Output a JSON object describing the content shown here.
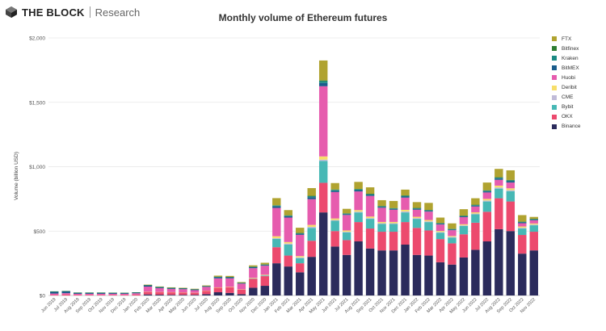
{
  "brand": {
    "name": "THE BLOCK",
    "sub": "Research"
  },
  "chart_data": {
    "type": "bar",
    "stacked": true,
    "title": "Monthly volume of Ethereum futures",
    "xlabel": "",
    "ylabel": "Volume (billion USD)",
    "ylim": [
      0,
      2000
    ],
    "yticks": [
      0,
      500,
      1000,
      1500,
      2000
    ],
    "ytick_labels": [
      "$0",
      "$500",
      "$1,000",
      "$1,500",
      "$2,000"
    ],
    "grid": true,
    "legend_position": "right",
    "categories": [
      "Jun 2019",
      "Jul 2019",
      "Aug 2019",
      "Sep 2019",
      "Oct 2019",
      "Nov 2019",
      "Dec 2019",
      "Jan 2020",
      "Feb 2020",
      "Mar 2020",
      "Apr 2020",
      "May 2020",
      "Jun 2020",
      "Jul 2020",
      "Aug 2020",
      "Sep 2020",
      "Oct 2020",
      "Nov 2020",
      "Dec 2020",
      "Jan 2021",
      "Feb 2021",
      "Mar 2021",
      "Apr 2021",
      "May 2021",
      "Jun 2021",
      "Jul 2021",
      "Aug 2021",
      "Sep 2021",
      "Oct 2021",
      "Nov 2021",
      "Dec 2021",
      "Jan 2022",
      "Feb 2022",
      "Mar 2022",
      "Apr 2022",
      "May 2022",
      "Jun 2022",
      "Jul 2022",
      "Aug 2022",
      "Sep 2022",
      "Oct 2022",
      "Nov 2022"
    ],
    "xtick_labels": [
      "Jun 2019",
      "Jul 2019",
      "Aug 2019",
      "Sep 2019",
      "Oct 2019",
      "Nov 2019",
      "Dec 2019",
      "Jan 2020",
      "Feb 2020",
      "Mar 2020",
      "Apr 2020",
      "May 2020",
      "Jun 2020",
      "Jul 2020",
      "Aug 2020",
      "Sep 2020",
      "Oct 2020",
      "Nov 2020",
      "Dec 2020",
      "Jan 2021",
      "Feb 2021",
      "Mar 2021",
      "Apr 2021",
      "May 2021",
      "Jun 2021",
      "Jul 2021",
      "Aug 2021",
      "Sep 2021",
      "Oct 2021",
      "Nov 2021",
      "Dec 2021",
      "Jan 2022",
      "Feb 2022",
      "Mar 2022",
      "Apr 2022",
      "May 2022",
      "Jun 2022",
      "Jul 2022",
      "Aug 2022",
      "Sep 2022",
      "Oct 2022",
      "Nov 2022"
    ],
    "series": [
      {
        "name": "Binance",
        "color": "#2b2b5c",
        "values": [
          0,
          0,
          0,
          0,
          0,
          0,
          0,
          0,
          8,
          6,
          5,
          5,
          5,
          10,
          25,
          20,
          10,
          60,
          75,
          250,
          225,
          180,
          300,
          645,
          380,
          315,
          420,
          365,
          350,
          350,
          395,
          315,
          310,
          258,
          240,
          295,
          355,
          420,
          515,
          500,
          325,
          350
        ]
      },
      {
        "name": "OKX",
        "color": "#ec4a6e",
        "values": [
          5,
          8,
          5,
          5,
          5,
          5,
          5,
          7,
          20,
          20,
          20,
          18,
          15,
          25,
          35,
          45,
          35,
          70,
          75,
          125,
          85,
          70,
          125,
          230,
          120,
          115,
          150,
          155,
          145,
          145,
          175,
          210,
          195,
          180,
          165,
          180,
          210,
          230,
          240,
          230,
          145,
          145
        ]
      },
      {
        "name": "Bybit",
        "color": "#47b8b5",
        "values": [
          0,
          0,
          0,
          0,
          0,
          0,
          0,
          0,
          0,
          0,
          0,
          0,
          0,
          0,
          0,
          0,
          0,
          3,
          5,
          65,
          85,
          40,
          100,
          170,
          80,
          60,
          75,
          75,
          60,
          60,
          75,
          70,
          65,
          50,
          45,
          65,
          65,
          80,
          75,
          80,
          50,
          50
        ]
      },
      {
        "name": "CME",
        "color": "#c0bbd8",
        "values": [
          0,
          0,
          0,
          0,
          0,
          0,
          0,
          0,
          0,
          0,
          0,
          0,
          0,
          0,
          0,
          0,
          0,
          0,
          1,
          5,
          8,
          6,
          8,
          10,
          6,
          5,
          6,
          6,
          6,
          6,
          8,
          6,
          6,
          5,
          5,
          5,
          6,
          8,
          9,
          8,
          6,
          6
        ]
      },
      {
        "name": "Deribit",
        "color": "#f7de6a",
        "values": [
          0,
          0,
          0,
          0,
          0,
          0,
          0,
          0,
          1,
          1,
          1,
          1,
          1,
          2,
          3,
          3,
          2,
          4,
          5,
          15,
          12,
          10,
          15,
          25,
          12,
          10,
          12,
          12,
          10,
          10,
          12,
          10,
          10,
          8,
          7,
          8,
          10,
          12,
          14,
          14,
          10,
          8
        ]
      },
      {
        "name": "Huobi",
        "color": "#e65cae",
        "values": [
          10,
          10,
          8,
          8,
          8,
          8,
          8,
          10,
          40,
          30,
          25,
          25,
          20,
          30,
          70,
          65,
          45,
          75,
          70,
          220,
          190,
          165,
          200,
          545,
          205,
          120,
          145,
          160,
          110,
          95,
          95,
          55,
          65,
          50,
          45,
          55,
          45,
          50,
          45,
          45,
          25,
          25
        ]
      },
      {
        "name": "BitMEX",
        "color": "#1a5c8b",
        "values": [
          15,
          15,
          8,
          8,
          8,
          7,
          6,
          6,
          10,
          8,
          7,
          6,
          6,
          5,
          10,
          8,
          5,
          8,
          6,
          12,
          10,
          8,
          15,
          25,
          10,
          6,
          10,
          8,
          7,
          6,
          8,
          7,
          6,
          6,
          5,
          6,
          7,
          8,
          10,
          10,
          6,
          5
        ]
      },
      {
        "name": "Kraken",
        "color": "#1b8a83",
        "values": [
          1,
          1,
          1,
          1,
          1,
          1,
          1,
          1,
          1,
          1,
          1,
          1,
          1,
          1,
          2,
          2,
          1,
          3,
          3,
          6,
          5,
          5,
          8,
          15,
          7,
          5,
          6,
          6,
          5,
          5,
          6,
          5,
          5,
          4,
          4,
          4,
          5,
          6,
          7,
          7,
          5,
          4
        ]
      },
      {
        "name": "Bitfinex",
        "color": "#2e7d32",
        "values": [
          1,
          1,
          1,
          1,
          1,
          1,
          1,
          1,
          1,
          1,
          1,
          1,
          1,
          1,
          1,
          1,
          1,
          1,
          2,
          3,
          3,
          2,
          3,
          5,
          3,
          2,
          3,
          3,
          2,
          2,
          3,
          2,
          2,
          2,
          2,
          2,
          2,
          3,
          3,
          3,
          2,
          2
        ]
      },
      {
        "name": "FTX",
        "color": "#b0a330",
        "values": [
          0,
          0,
          0,
          0,
          0,
          0,
          0,
          0,
          3,
          3,
          3,
          3,
          3,
          4,
          8,
          8,
          5,
          10,
          12,
          55,
          40,
          40,
          60,
          155,
          50,
          35,
          55,
          50,
          45,
          55,
          45,
          45,
          55,
          42,
          42,
          50,
          50,
          60,
          65,
          75,
          50,
          15
        ]
      }
    ]
  }
}
